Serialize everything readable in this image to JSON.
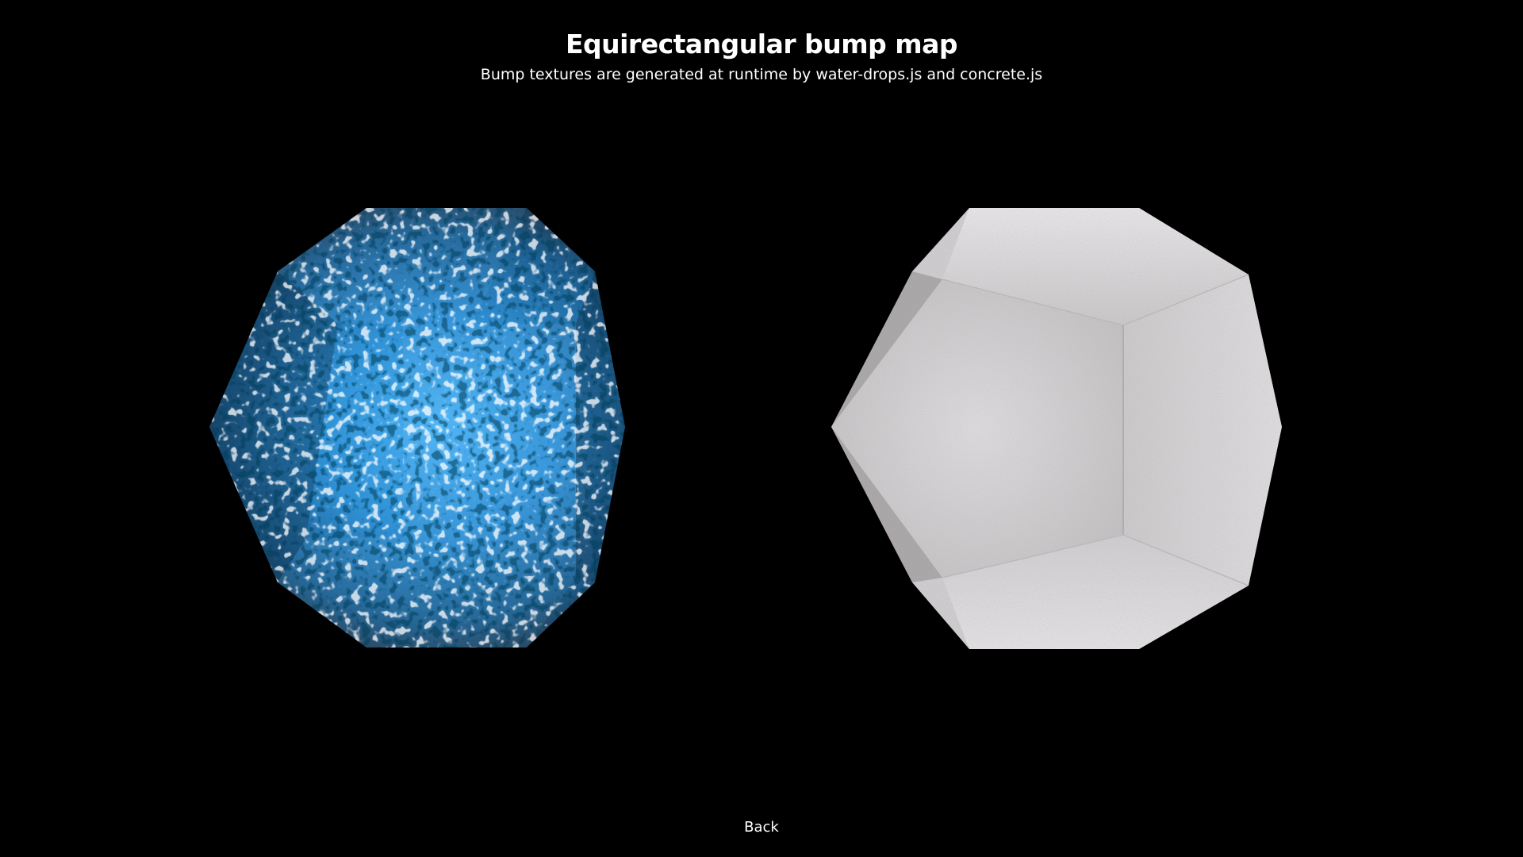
{
  "header": {
    "title": "Equirectangular bump map",
    "subtitle": "Bump textures are generated at runtime by water-drops.js and concrete.js"
  },
  "scenes": [
    {
      "id": "water-drops",
      "shape": "dodecahedron",
      "material": "water-drops",
      "base_color": "#3aa0e6"
    },
    {
      "id": "concrete",
      "shape": "dodecahedron",
      "material": "concrete",
      "base_color": "#d8d6d8"
    }
  ],
  "footer": {
    "back_label": "Back"
  }
}
